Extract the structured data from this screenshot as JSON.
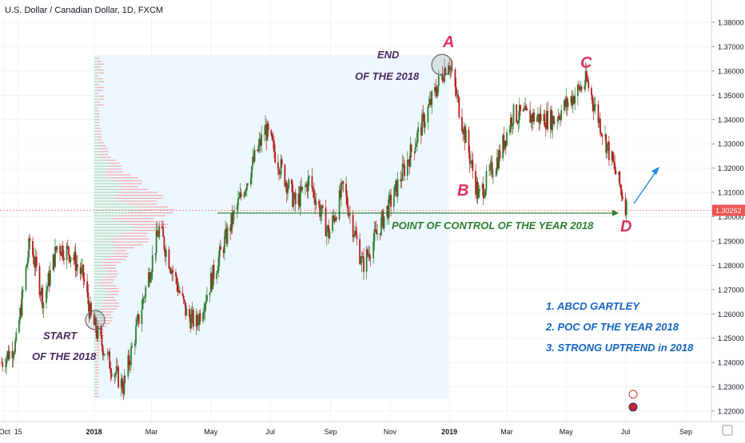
{
  "header": {
    "symbol_title": "U.S. Dollar / Canadian Dollar, 1D, FXCM"
  },
  "price_tag": "1.30262",
  "x_ticks": [
    "Oct",
    "15",
    "2018",
    "Mar",
    "May",
    "Jul",
    "Sep",
    "Nov",
    "2019",
    "Mar",
    "May",
    "Jul",
    "Sep"
  ],
  "colors": {
    "up": "#26a69a",
    "down": "#ef5350",
    "candle_up": "#2e7d32",
    "candle_down": "#b71c1c",
    "annotation_purple": "#4a2a5e",
    "pattern_red": "#e0325f",
    "poc_green": "#2e7d32",
    "note_blue": "#1565c0",
    "range_fill": "#e3f2fd"
  },
  "annotations": {
    "start_line1": "START",
    "start_line2": "OF THE 2018",
    "end_line1": "END",
    "end_line2": "OF THE 2018",
    "label_a": "A",
    "label_b": "B",
    "label_c": "C",
    "label_d": "D",
    "poc_text": "POINT OF CONTROL OF THE YEAR 2018",
    "notes": [
      "1. ABCD GARTLEY",
      "2. POC OF THE YEAR 2018",
      "3. STRONG UPTREND in 2018"
    ]
  },
  "chart_data": {
    "type": "candlestick",
    "title": "U.S. Dollar / Canadian Dollar, 1D, FXCM",
    "yticks": [
      "1.38000",
      "1.37000",
      "1.36000",
      "1.35000",
      "1.34000",
      "1.33000",
      "1.32000",
      "1.31000",
      "1.30000",
      "1.29000",
      "1.28000",
      "1.27000",
      "1.26000",
      "1.25000",
      "1.24000",
      "1.23000",
      "1.22000"
    ],
    "ylim": [
      1.215,
      1.385
    ],
    "last_price": 1.30262,
    "poc_level": 1.3015,
    "pivots": [
      {
        "label": "A",
        "date": "2018-12-31",
        "price": 1.3665
      },
      {
        "label": "B",
        "date": "2019-01-31",
        "price": 1.307
      },
      {
        "label": "C",
        "date": "2019-05-22",
        "price": 1.3565
      },
      {
        "label": "D",
        "date": "2019-07-03",
        "price": 1.3025
      }
    ],
    "path_key_points": [
      {
        "date": "2017-09-28",
        "close": 1.24
      },
      {
        "date": "2017-10-13",
        "close": 1.248
      },
      {
        "date": "2017-10-27",
        "close": 1.29
      },
      {
        "date": "2017-11-10",
        "close": 1.265
      },
      {
        "date": "2017-11-24",
        "close": 1.288
      },
      {
        "date": "2017-12-08",
        "close": 1.285
      },
      {
        "date": "2017-12-21",
        "close": 1.275
      },
      {
        "date": "2017-12-29",
        "close": 1.258
      },
      {
        "date": "2018-01-18",
        "close": 1.239
      },
      {
        "date": "2018-01-31",
        "close": 1.23
      },
      {
        "date": "2018-03-09",
        "close": 1.295
      },
      {
        "date": "2018-04-06",
        "close": 1.26
      },
      {
        "date": "2018-04-16",
        "close": 1.256
      },
      {
        "date": "2018-05-18",
        "close": 1.293
      },
      {
        "date": "2018-06-26",
        "close": 1.336
      },
      {
        "date": "2018-07-27",
        "close": 1.305
      },
      {
        "date": "2018-08-10",
        "close": 1.315
      },
      {
        "date": "2018-08-30",
        "close": 1.293
      },
      {
        "date": "2018-09-14",
        "close": 1.312
      },
      {
        "date": "2018-10-04",
        "close": 1.28
      },
      {
        "date": "2018-11-06",
        "close": 1.31
      },
      {
        "date": "2018-12-31",
        "close": 1.365
      },
      {
        "date": "2019-01-31",
        "close": 1.308
      },
      {
        "date": "2019-02-21",
        "close": 1.325
      },
      {
        "date": "2019-03-07",
        "close": 1.342
      },
      {
        "date": "2019-04-18",
        "close": 1.34
      },
      {
        "date": "2019-05-22",
        "close": 1.356
      },
      {
        "date": "2019-07-03",
        "close": 1.3026
      }
    ]
  }
}
